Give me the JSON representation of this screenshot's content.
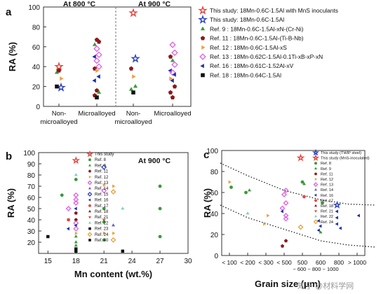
{
  "chart_data": [
    {
      "panel": "a",
      "type": "scatter",
      "ylabel": "RA (%)",
      "ylim": [
        0,
        100
      ],
      "yticks": [
        0,
        20,
        40,
        60,
        80,
        100
      ],
      "categories": [
        "Non-\nmicroalloyed",
        "Microalloyed",
        "Non-\nmicroalloyed",
        "Microalloyed"
      ],
      "groups": [
        "At 800 °C",
        "At 900 °C"
      ],
      "legend": [
        {
          "marker": "star",
          "color": "#e8463c",
          "label": "This study: 18Mn-0.6C-1.5Al with MnS inoculants"
        },
        {
          "marker": "star",
          "color": "#2a3fc2",
          "label": "This study: 18Mn-0.6C-1.5Al"
        },
        {
          "marker": "triangle-up",
          "color": "#3a9a3a",
          "label": "Ref. 9    : 18Mn-0.6C-1.5Al-xN-(Cr-Ni)"
        },
        {
          "marker": "pentagon",
          "color": "#8b1a1a",
          "label": "Ref. 11  : 18Mn-0.6C-1.5Al-(Ti-B-Nb)"
        },
        {
          "marker": "triangle-right",
          "color": "#f0a040",
          "label": "Ref. 12  : 18Mn-0.6C-1.5Al-xS"
        },
        {
          "marker": "diamond",
          "color": "#e060e0",
          "label": "Ref. 13  : 18Mn-0.62C-1.5Al-0.1Ti-xB-xP-xN"
        },
        {
          "marker": "triangle-left",
          "color": "#1a2fb0",
          "label": "Ref. 16  : 18Mn-0.61C-1.52Al-xV"
        },
        {
          "marker": "square",
          "color": "#111111",
          "label": "Ref. 18  : 18Mn-0.64C-1.5Al"
        }
      ],
      "points": [
        {
          "cat": 0,
          "y": 40,
          "ref": 0
        },
        {
          "cat": 0,
          "y": 19,
          "ref": 1
        },
        {
          "cat": 0,
          "y": 34,
          "ref": 2
        },
        {
          "cat": 0,
          "y": 36,
          "ref": 3
        },
        {
          "cat": 0,
          "y": 28,
          "ref": 4
        },
        {
          "cat": 0,
          "y": 20,
          "ref": 7
        },
        {
          "cat": 1,
          "y": 67,
          "ref": 3
        },
        {
          "cat": 1,
          "y": 65,
          "ref": 3
        },
        {
          "cat": 1,
          "y": 62,
          "ref": 2
        },
        {
          "cat": 1,
          "y": 58,
          "ref": 5
        },
        {
          "cat": 1,
          "y": 52,
          "ref": 5
        },
        {
          "cat": 1,
          "y": 50,
          "ref": 6
        },
        {
          "cat": 1,
          "y": 46,
          "ref": 5
        },
        {
          "cat": 1,
          "y": 40,
          "ref": 5
        },
        {
          "cat": 1,
          "y": 38,
          "ref": 3
        },
        {
          "cat": 1,
          "y": 36,
          "ref": 4
        },
        {
          "cat": 1,
          "y": 30,
          "ref": 6
        },
        {
          "cat": 1,
          "y": 26,
          "ref": 6
        },
        {
          "cat": 1,
          "y": 16,
          "ref": 3
        },
        {
          "cat": 1,
          "y": 14,
          "ref": 2
        },
        {
          "cat": 1,
          "y": 11,
          "ref": 3
        },
        {
          "cat": 1,
          "y": 9,
          "ref": 7
        },
        {
          "cat": 2,
          "y": 94,
          "ref": 0
        },
        {
          "cat": 2,
          "y": 48,
          "ref": 1
        },
        {
          "cat": 2,
          "y": 38,
          "ref": 3
        },
        {
          "cat": 2,
          "y": 30,
          "ref": 4
        },
        {
          "cat": 2,
          "y": 20,
          "ref": 2
        },
        {
          "cat": 2,
          "y": 17,
          "ref": 2
        },
        {
          "cat": 2,
          "y": 14,
          "ref": 7
        },
        {
          "cat": 3,
          "y": 62,
          "ref": 5
        },
        {
          "cat": 3,
          "y": 54,
          "ref": 5
        },
        {
          "cat": 3,
          "y": 50,
          "ref": 3
        },
        {
          "cat": 3,
          "y": 46,
          "ref": 2
        },
        {
          "cat": 3,
          "y": 42,
          "ref": 5
        },
        {
          "cat": 3,
          "y": 36,
          "ref": 6
        },
        {
          "cat": 3,
          "y": 34,
          "ref": 5
        },
        {
          "cat": 3,
          "y": 32,
          "ref": 6
        },
        {
          "cat": 3,
          "y": 28,
          "ref": 4
        },
        {
          "cat": 3,
          "y": 26,
          "ref": 6
        },
        {
          "cat": 3,
          "y": 20,
          "ref": 3
        },
        {
          "cat": 3,
          "y": 14,
          "ref": 3
        },
        {
          "cat": 3,
          "y": 9,
          "ref": 3
        }
      ]
    },
    {
      "panel": "b",
      "type": "scatter",
      "annotation": "At 900 °C",
      "xlabel": "Mn content (wt.%)",
      "ylabel": "RA (%)",
      "xlim": [
        14,
        30
      ],
      "ylim": [
        10,
        100
      ],
      "xticks": [
        15,
        18,
        21,
        24,
        27,
        30
      ],
      "yticks": [
        20,
        30,
        40,
        50,
        60,
        70,
        80,
        90,
        100
      ],
      "legend": [
        {
          "marker": "star",
          "color": "#e8463c",
          "label": "This study"
        },
        {
          "marker": "circle",
          "color": "#3a9a3a",
          "label": "Ref. 8"
        },
        {
          "marker": "triangle-up",
          "color": "#3a9a3a",
          "label": "Ref. 9"
        },
        {
          "marker": "pentagon",
          "color": "#8b1a1a",
          "label": "Ref. 11"
        },
        {
          "marker": "triangle-right",
          "color": "#f0a040",
          "label": "Ref. 12"
        },
        {
          "marker": "diamond",
          "color": "#e060e0",
          "label": "Ref. 13"
        },
        {
          "marker": "triangle-up",
          "color": "#6a5acd",
          "label": "Ref. 14"
        },
        {
          "marker": "diamond",
          "color": "#2a3fc2",
          "label": "Ref. 15"
        },
        {
          "marker": "triangle-left",
          "color": "#1a2fb0",
          "label": "Ref. 16"
        },
        {
          "marker": "circle",
          "color": "#e8463c",
          "label": "Ref. 17"
        },
        {
          "marker": "triangle-up",
          "color": "#8b1a1a",
          "label": "Ref. 18"
        },
        {
          "marker": "triangle-down",
          "color": "#e8463c",
          "label": "Ref. 21"
        },
        {
          "marker": "triangle-up",
          "color": "#7fd0c0",
          "label": "Ref. 22"
        },
        {
          "marker": "square",
          "color": "#111111",
          "label": "Ref. 23"
        },
        {
          "marker": "diamond",
          "color": "#e8a040",
          "label": "Ref. 24"
        },
        {
          "marker": "square",
          "color": "#111111",
          "label": "Ref. 40"
        }
      ],
      "points": [
        {
          "x": 18,
          "y": 93,
          "ref": 0
        },
        {
          "x": 18,
          "y": 80,
          "ref": 12
        },
        {
          "x": 18,
          "y": 76,
          "ref": 1
        },
        {
          "x": 18,
          "y": 62,
          "ref": 5
        },
        {
          "x": 18,
          "y": 58,
          "ref": 5
        },
        {
          "x": 18,
          "y": 55,
          "ref": 5
        },
        {
          "x": 18,
          "y": 50,
          "ref": 8
        },
        {
          "x": 18,
          "y": 46,
          "ref": 3
        },
        {
          "x": 18,
          "y": 40,
          "ref": 3
        },
        {
          "x": 18,
          "y": 37,
          "ref": 5
        },
        {
          "x": 18,
          "y": 35,
          "ref": 8
        },
        {
          "x": 18,
          "y": 32,
          "ref": 5
        },
        {
          "x": 18,
          "y": 28,
          "ref": 4
        },
        {
          "x": 18,
          "y": 25,
          "ref": 2
        },
        {
          "x": 18,
          "y": 20,
          "ref": 2
        },
        {
          "x": 18,
          "y": 17,
          "ref": 2
        },
        {
          "x": 18,
          "y": 14,
          "ref": 13
        },
        {
          "x": 18,
          "y": 12,
          "ref": 13
        },
        {
          "x": 16.5,
          "y": 62,
          "ref": 1
        },
        {
          "x": 17.2,
          "y": 50,
          "ref": 5
        },
        {
          "x": 17.2,
          "y": 40,
          "ref": 9
        },
        {
          "x": 17.2,
          "y": 32,
          "ref": 8
        },
        {
          "x": 15,
          "y": 25,
          "ref": 15
        },
        {
          "x": 21,
          "y": 87,
          "ref": 7
        },
        {
          "x": 21,
          "y": 71,
          "ref": 4
        },
        {
          "x": 21,
          "y": 66,
          "ref": 5
        },
        {
          "x": 21,
          "y": 50,
          "ref": 1
        },
        {
          "x": 21,
          "y": 40,
          "ref": 11
        },
        {
          "x": 21,
          "y": 38,
          "ref": 1
        },
        {
          "x": 21,
          "y": 28,
          "ref": 4
        },
        {
          "x": 21,
          "y": 22,
          "ref": 1
        },
        {
          "x": 22,
          "y": 70,
          "ref": 4
        },
        {
          "x": 22,
          "y": 65,
          "ref": 14
        },
        {
          "x": 22,
          "y": 35,
          "ref": 6
        },
        {
          "x": 22,
          "y": 28,
          "ref": 4
        },
        {
          "x": 22,
          "y": 22,
          "ref": 14
        },
        {
          "x": 23,
          "y": 50,
          "ref": 12
        },
        {
          "x": 23,
          "y": 12,
          "ref": 13
        },
        {
          "x": 27,
          "y": 70,
          "ref": 1
        },
        {
          "x": 27,
          "y": 50,
          "ref": 1
        },
        {
          "x": 27,
          "y": 25,
          "ref": 1
        }
      ]
    },
    {
      "panel": "c",
      "type": "scatter",
      "xlabel": "Grain size (μm)",
      "ylabel": "RA (%)",
      "ylim": [
        0,
        100
      ],
      "yticks": [
        0,
        20,
        40,
        60,
        80,
        100
      ],
      "xcategories": [
        "< 100",
        "< 200",
        "< 300",
        "< 500",
        "500",
        "600",
        "800",
        "> 1000"
      ],
      "xsub": "~ 600 ~ 800 ~ 1000",
      "legend": [
        {
          "marker": "star",
          "color": "#2a3fc2",
          "label": "This study (TWIP steel)"
        },
        {
          "marker": "star",
          "color": "#e8463c",
          "label": "This study (MnS-inoculated)"
        },
        {
          "marker": "circle",
          "color": "#3a9a3a",
          "label": "Ref. 8"
        },
        {
          "marker": "triangle-up",
          "color": "#3a9a3a",
          "label": "Ref. 9"
        },
        {
          "marker": "pentagon",
          "color": "#8b1a1a",
          "label": "Ref. 11"
        },
        {
          "marker": "triangle-right",
          "color": "#f0a040",
          "label": "Ref. 12"
        },
        {
          "marker": "diamond",
          "color": "#e060e0",
          "label": "Ref. 13"
        },
        {
          "marker": "triangle-up",
          "color": "#6a5acd",
          "label": "Ref. 14"
        },
        {
          "marker": "triangle-left",
          "color": "#1a2fb0",
          "label": "Ref. 16"
        },
        {
          "marker": "circle",
          "color": "#e8463c",
          "label": "Ref. 17"
        },
        {
          "marker": "triangle-up",
          "color": "#8b1a1a",
          "label": "Ref. 18"
        },
        {
          "marker": "triangle-down",
          "color": "#e8463c",
          "label": "Ref. 21"
        },
        {
          "marker": "triangle-up",
          "color": "#7fd0c0",
          "label": "Ref. 22"
        },
        {
          "marker": "diamond",
          "color": "#e8a040",
          "label": "Ref. 24"
        }
      ],
      "upper_trend": [
        [
          0.5,
          88
        ],
        [
          2,
          76
        ],
        [
          4,
          62
        ],
        [
          6,
          53
        ],
        [
          7.5,
          49
        ],
        [
          9,
          48
        ]
      ],
      "lower_trend": [
        [
          0.5,
          48
        ],
        [
          2,
          36
        ],
        [
          4,
          25
        ],
        [
          6,
          14
        ],
        [
          7.5,
          10
        ],
        [
          9,
          8
        ]
      ],
      "points": [
        {
          "x": 1,
          "y": 70,
          "ref": 5
        },
        {
          "x": 1,
          "y": 65,
          "ref": 2
        },
        {
          "x": 2,
          "y": 62,
          "ref": 3
        },
        {
          "x": 2,
          "y": 60,
          "ref": 2
        },
        {
          "x": 2,
          "y": 40,
          "ref": 12
        },
        {
          "x": 3,
          "y": 38,
          "ref": 5
        },
        {
          "x": 3,
          "y": 30,
          "ref": 5
        },
        {
          "x": 4,
          "y": 62,
          "ref": 6
        },
        {
          "x": 4,
          "y": 58,
          "ref": 6
        },
        {
          "x": 4,
          "y": 50,
          "ref": 6
        },
        {
          "x": 4,
          "y": 45,
          "ref": 6
        },
        {
          "x": 4,
          "y": 42,
          "ref": 8
        },
        {
          "x": 4,
          "y": 38,
          "ref": 6
        },
        {
          "x": 4,
          "y": 35,
          "ref": 6
        },
        {
          "x": 4,
          "y": 14,
          "ref": 4
        },
        {
          "x": 4,
          "y": 9,
          "ref": 4
        },
        {
          "x": 5,
          "y": 93,
          "ref": 1
        },
        {
          "x": 5,
          "y": 70,
          "ref": 2
        },
        {
          "x": 5,
          "y": 68,
          "ref": 3
        },
        {
          "x": 5,
          "y": 56,
          "ref": 9
        },
        {
          "x": 5,
          "y": 27,
          "ref": 13
        },
        {
          "x": 6,
          "y": 50,
          "ref": 2
        },
        {
          "x": 6,
          "y": 33,
          "ref": 8
        },
        {
          "x": 6,
          "y": 28,
          "ref": 8
        },
        {
          "x": 6,
          "y": 24,
          "ref": 8
        },
        {
          "x": 6,
          "y": 22,
          "ref": 3
        },
        {
          "x": 7,
          "y": 48,
          "ref": 0
        },
        {
          "x": 7,
          "y": 42,
          "ref": 8
        },
        {
          "x": 7,
          "y": 36,
          "ref": 8
        },
        {
          "x": 7,
          "y": 30,
          "ref": 8
        },
        {
          "x": 7,
          "y": 26,
          "ref": 8
        },
        {
          "x": 8,
          "y": 38,
          "ref": 8
        }
      ]
    }
  ],
  "watermark": "知乎 @材料学网"
}
